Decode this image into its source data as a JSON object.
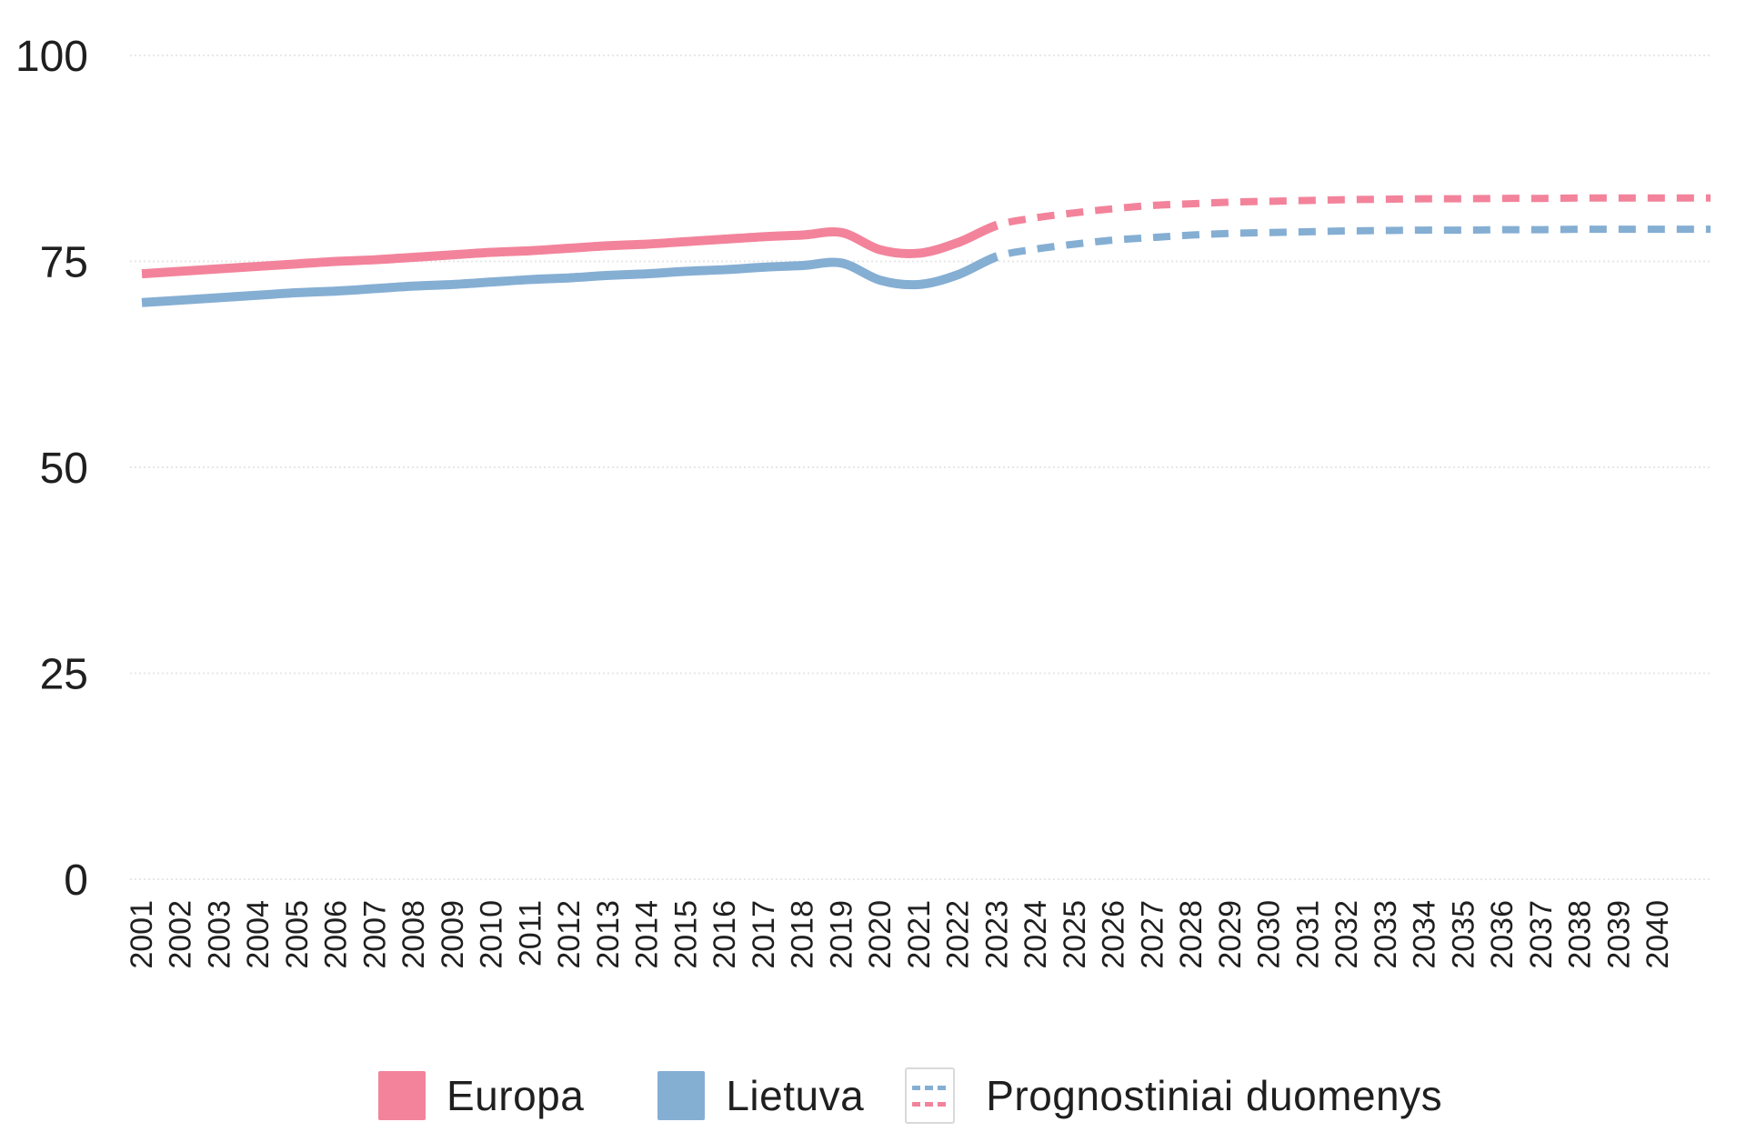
{
  "legend": {
    "items": [
      {
        "label": "Europa"
      },
      {
        "label": "Lietuva"
      },
      {
        "label": "Prognostiniai duomenys"
      }
    ]
  },
  "colors": {
    "europa": "#f2839b",
    "lietuva": "#85aed3",
    "grid": "#e7e7e7",
    "text": "#1f1f1f",
    "forecast_box_border": "#d9d9d9"
  },
  "chart_data": {
    "type": "line",
    "title": "",
    "xlabel": "",
    "ylabel": "",
    "y_ticks": [
      0,
      25,
      50,
      75,
      100
    ],
    "ylim": [
      0,
      100
    ],
    "grid": "horizontal-dotted",
    "legend_position": "bottom-center",
    "forecast_from_year": 2023,
    "forecast_style": "dashed",
    "years": [
      2001,
      2002,
      2003,
      2004,
      2005,
      2006,
      2007,
      2008,
      2009,
      2010,
      2011,
      2012,
      2013,
      2014,
      2015,
      2016,
      2017,
      2018,
      2019,
      2020,
      2021,
      2022,
      2023,
      2024,
      2025,
      2026,
      2027,
      2028,
      2029,
      2030,
      2031,
      2032,
      2033,
      2034,
      2035,
      2036,
      2037,
      2038,
      2039,
      2040
    ],
    "series": [
      {
        "name": "Europa",
        "color": "#f2839b",
        "values": [
          73.5,
          73.8,
          74.1,
          74.4,
          74.7,
          75.0,
          75.2,
          75.5,
          75.8,
          76.1,
          76.3,
          76.6,
          76.9,
          77.1,
          77.4,
          77.7,
          78.0,
          78.2,
          78.5,
          76.4,
          76.0,
          77.3,
          79.4,
          80.3,
          80.9,
          81.4,
          81.8,
          82.0,
          82.2,
          82.3,
          82.4,
          82.5,
          82.55,
          82.6,
          82.6,
          82.65,
          82.65,
          82.7,
          82.7,
          82.7
        ]
      },
      {
        "name": "Lietuva",
        "color": "#85aed3",
        "values": [
          70.0,
          70.3,
          70.6,
          70.9,
          71.2,
          71.4,
          71.7,
          72.0,
          72.2,
          72.5,
          72.8,
          73.0,
          73.3,
          73.5,
          73.8,
          74.0,
          74.3,
          74.5,
          74.8,
          72.7,
          72.2,
          73.4,
          75.6,
          76.5,
          77.1,
          77.6,
          77.9,
          78.2,
          78.4,
          78.5,
          78.6,
          78.7,
          78.75,
          78.8,
          78.8,
          78.85,
          78.85,
          78.9,
          78.9,
          78.9
        ]
      }
    ]
  }
}
